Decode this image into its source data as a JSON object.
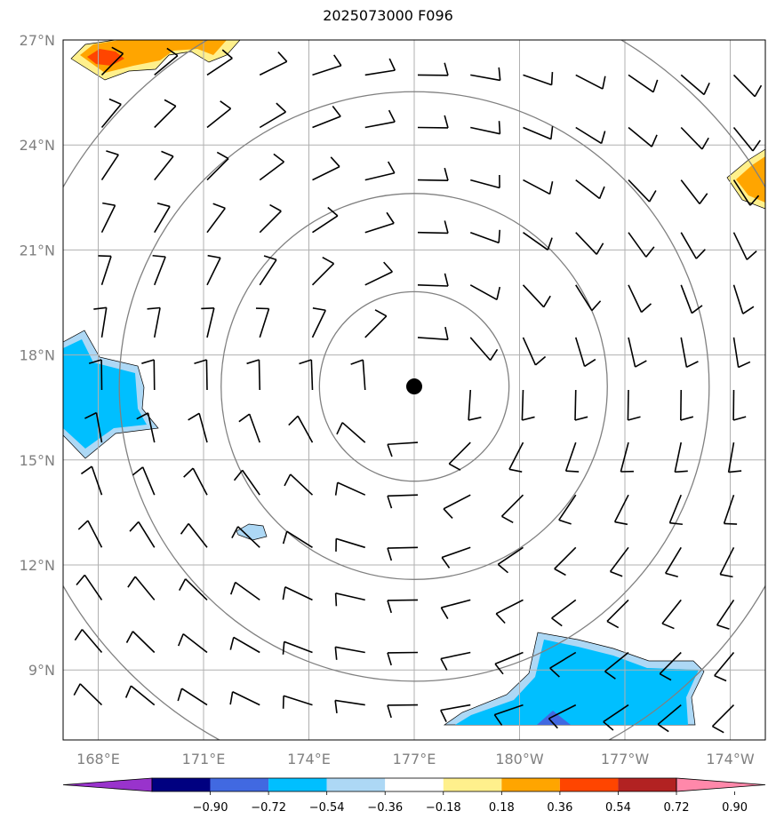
{
  "title": "2025073000 F096",
  "map": {
    "extent": {
      "lon_min": 167.0,
      "lon_max": 187.0,
      "lat_min": 7.0,
      "lat_max": 27.0
    },
    "lat_ticks": [
      {
        "value": 27,
        "label": "27°N"
      },
      {
        "value": 24,
        "label": "24°N"
      },
      {
        "value": 21,
        "label": "21°N"
      },
      {
        "value": 18,
        "label": "18°N"
      },
      {
        "value": 15,
        "label": "15°N"
      },
      {
        "value": 12,
        "label": "12°N"
      },
      {
        "value": 9,
        "label": "9°N"
      }
    ],
    "lon_ticks": [
      {
        "value": 168,
        "label": "168°E"
      },
      {
        "value": 171,
        "label": "171°E"
      },
      {
        "value": 174,
        "label": "174°E"
      },
      {
        "value": 177,
        "label": "177°E"
      },
      {
        "value": 180,
        "label": "180°W"
      },
      {
        "value": 183,
        "label": "177°W"
      },
      {
        "value": 186,
        "label": "174°W"
      }
    ],
    "center": {
      "lon": 177.0,
      "lat": 17.1
    },
    "range_rings_deg": [
      2.7,
      5.5,
      8.4,
      11.5
    ],
    "colors": {
      "ring": "#808080",
      "grid": "#b0b0b0",
      "barb": "#000000",
      "center": "#000000"
    }
  },
  "colorbar": {
    "colors": [
      "#9933cc",
      "#000080",
      "#4169e1",
      "#00bfff",
      "#add8f5",
      "#ffffff",
      "#fff08c",
      "#ffa500",
      "#ff4500",
      "#b22222",
      "#ff88aa"
    ],
    "labels": [
      "−0.90",
      "−0.72",
      "−0.54",
      "−0.36",
      "−0.18",
      "0.18",
      "0.36",
      "0.54",
      "0.72",
      "0.90"
    ]
  }
}
